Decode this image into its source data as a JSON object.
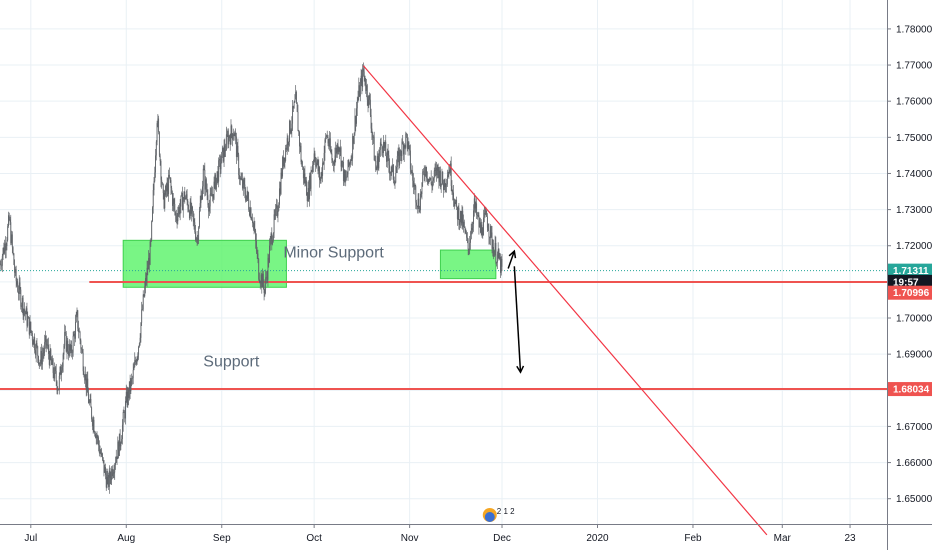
{
  "chart_data": {
    "type": "candlestick",
    "x_ticks": [
      {
        "label": "Jul",
        "date": "2019-07-01"
      },
      {
        "label": "Aug",
        "date": "2019-08-01"
      },
      {
        "label": "Sep",
        "date": "2019-09-01"
      },
      {
        "label": "Oct",
        "date": "2019-10-01"
      },
      {
        "label": "Nov",
        "date": "2019-11-01"
      },
      {
        "label": "Dec",
        "date": "2019-12-01"
      },
      {
        "label": "2020",
        "date": "2020-01-01"
      },
      {
        "label": "Feb",
        "date": "2020-02-01"
      },
      {
        "label": "Mar",
        "date": "2020-03-01"
      },
      {
        "label": "23",
        "date": "2020-03-23"
      }
    ],
    "y_ticks": [
      "1.78000",
      "1.77000",
      "1.76000",
      "1.75000",
      "1.74000",
      "1.73000",
      "1.72000",
      "1.71000",
      "1.70000",
      "1.69000",
      "1.68000",
      "1.67000",
      "1.66000",
      "1.65000"
    ],
    "ylim": [
      1.643,
      1.788
    ],
    "xlim": [
      "2019-06-21",
      "2020-04-04"
    ],
    "price_path": [
      [
        "2019-06-21",
        1.715
      ],
      [
        "2019-06-23",
        1.722
      ],
      [
        "2019-06-24",
        1.727
      ],
      [
        "2019-06-26",
        1.711
      ],
      [
        "2019-06-28",
        1.705
      ],
      [
        "2019-06-30",
        1.699
      ],
      [
        "2019-07-02",
        1.694
      ],
      [
        "2019-07-04",
        1.688
      ],
      [
        "2019-07-06",
        1.693
      ],
      [
        "2019-07-08",
        1.686
      ],
      [
        "2019-07-10",
        1.681
      ],
      [
        "2019-07-12",
        1.694
      ],
      [
        "2019-07-14",
        1.69
      ],
      [
        "2019-07-16",
        1.7
      ],
      [
        "2019-07-18",
        1.688
      ],
      [
        "2019-07-20",
        1.676
      ],
      [
        "2019-07-22",
        1.669
      ],
      [
        "2019-07-24",
        1.661
      ],
      [
        "2019-07-26",
        1.654
      ],
      [
        "2019-07-28",
        1.66
      ],
      [
        "2019-07-30",
        1.666
      ],
      [
        "2019-08-01",
        1.677
      ],
      [
        "2019-08-03",
        1.683
      ],
      [
        "2019-08-05",
        1.693
      ],
      [
        "2019-08-07",
        1.708
      ],
      [
        "2019-08-09",
        1.72
      ],
      [
        "2019-08-11",
        1.756
      ],
      [
        "2019-08-13",
        1.732
      ],
      [
        "2019-08-15",
        1.738
      ],
      [
        "2019-08-17",
        1.728
      ],
      [
        "2019-08-20",
        1.734
      ],
      [
        "2019-08-22",
        1.729
      ],
      [
        "2019-08-24",
        1.722
      ],
      [
        "2019-08-26",
        1.74
      ],
      [
        "2019-08-28",
        1.731
      ],
      [
        "2019-08-30",
        1.738
      ],
      [
        "2019-09-01",
        1.744
      ],
      [
        "2019-09-03",
        1.75
      ],
      [
        "2019-09-05",
        1.752
      ],
      [
        "2019-09-07",
        1.738
      ],
      [
        "2019-09-09",
        1.734
      ],
      [
        "2019-09-11",
        1.728
      ],
      [
        "2019-09-13",
        1.713
      ],
      [
        "2019-09-15",
        1.708
      ],
      [
        "2019-09-17",
        1.722
      ],
      [
        "2019-09-19",
        1.73
      ],
      [
        "2019-09-21",
        1.744
      ],
      [
        "2019-09-23",
        1.752
      ],
      [
        "2019-09-25",
        1.76
      ],
      [
        "2019-09-27",
        1.742
      ],
      [
        "2019-09-29",
        1.734
      ],
      [
        "2019-10-01",
        1.746
      ],
      [
        "2019-10-03",
        1.738
      ],
      [
        "2019-10-05",
        1.751
      ],
      [
        "2019-10-07",
        1.743
      ],
      [
        "2019-10-09",
        1.749
      ],
      [
        "2019-10-11",
        1.737
      ],
      [
        "2019-10-13",
        1.745
      ],
      [
        "2019-10-15",
        1.76
      ],
      [
        "2019-10-17",
        1.768
      ],
      [
        "2019-10-19",
        1.759
      ],
      [
        "2019-10-21",
        1.741
      ],
      [
        "2019-10-23",
        1.749
      ],
      [
        "2019-10-25",
        1.743
      ],
      [
        "2019-10-27",
        1.739
      ],
      [
        "2019-10-29",
        1.746
      ],
      [
        "2019-10-31",
        1.75
      ],
      [
        "2019-11-02",
        1.738
      ],
      [
        "2019-11-04",
        1.731
      ],
      [
        "2019-11-06",
        1.742
      ],
      [
        "2019-11-08",
        1.737
      ],
      [
        "2019-11-10",
        1.741
      ],
      [
        "2019-11-12",
        1.737
      ],
      [
        "2019-11-14",
        1.742
      ],
      [
        "2019-11-16",
        1.73
      ],
      [
        "2019-11-18",
        1.727
      ],
      [
        "2019-11-20",
        1.719
      ],
      [
        "2019-11-22",
        1.731
      ],
      [
        "2019-11-24",
        1.724
      ],
      [
        "2019-11-26",
        1.728
      ],
      [
        "2019-11-28",
        1.72
      ],
      [
        "2019-11-30",
        1.716
      ],
      [
        "2019-12-01",
        1.713
      ]
    ],
    "trendline": {
      "from": [
        "2019-10-17",
        1.7698
      ],
      "to": [
        "2020-02-25",
        1.64
      ]
    },
    "horizontal_lines": [
      {
        "price": 1.70996,
        "from": "2019-07-20",
        "color": "#ef5350"
      },
      {
        "price": 1.68034,
        "from": "2019-06-21",
        "color": "#ef5350"
      }
    ],
    "current_price_line": {
      "price": 1.71311,
      "color": "#26a69a"
    },
    "zones": [
      {
        "x0": "2019-07-31",
        "x1": "2019-09-22",
        "y0": 1.7085,
        "y1": 1.7215
      },
      {
        "x0": "2019-11-11",
        "x1": "2019-11-29",
        "y0": 1.7109,
        "y1": 1.7188
      }
    ],
    "arrows": [
      {
        "from": [
          "2019-12-03",
          1.7137
        ],
        "to": [
          "2019-12-05",
          1.7185
        ]
      },
      {
        "from": [
          "2019-12-05",
          1.7143
        ],
        "to": [
          "2019-12-07",
          1.685
        ]
      }
    ],
    "annotations": [
      {
        "text": "Minor Support",
        "date": "2019-09-21",
        "price": 1.7167
      },
      {
        "text": "Support",
        "date": "2019-08-26",
        "price": 1.6866
      }
    ],
    "price_badges": [
      {
        "text": "1.71311",
        "price": 1.71311,
        "color": "#26a69a"
      },
      {
        "text": "19:57",
        "price": 1.71,
        "color": "#131722"
      },
      {
        "text": "1.70996",
        "price": 1.707,
        "color": "#ef5350"
      },
      {
        "text": "1.68034",
        "price": 1.68034,
        "color": "#ef5350"
      }
    ],
    "events": {
      "label": "2 1 2",
      "date": "2019-11-28"
    },
    "colors": {
      "candle": "#5f6368",
      "grid": "#e9f0f5",
      "zone_fill": "#57f367",
      "trendline": "#f23645",
      "text": "#5d6b7a"
    }
  }
}
